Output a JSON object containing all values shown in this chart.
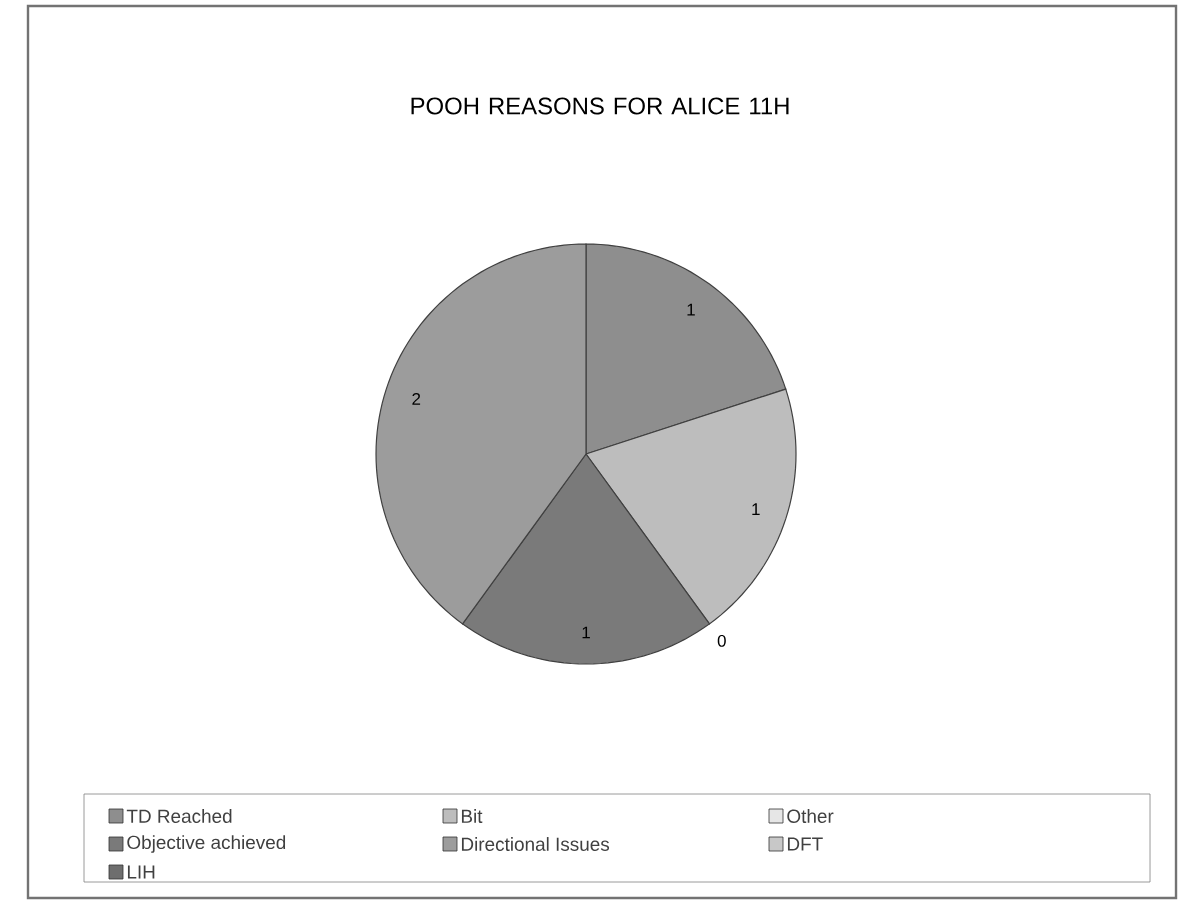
{
  "chart_data": {
    "type": "pie",
    "title": "POOH REASONS FOR ALICE 11H",
    "categories": [
      "TD Reached",
      "Bit",
      "Other",
      "Objective achieved",
      "Directional Issues",
      "DFT",
      "LIH"
    ],
    "values": [
      1,
      1,
      0,
      1,
      2,
      null,
      null
    ],
    "colors": [
      "#8e8e8e",
      "#bdbdbd",
      "#e6e6e6",
      "#7a7a7a",
      "#9c9c9c",
      "#c8c8c8",
      "#6e6e6e"
    ],
    "value_labels": [
      "1",
      "1",
      "0",
      "1",
      "2",
      null,
      null
    ],
    "legend": "bottom"
  }
}
